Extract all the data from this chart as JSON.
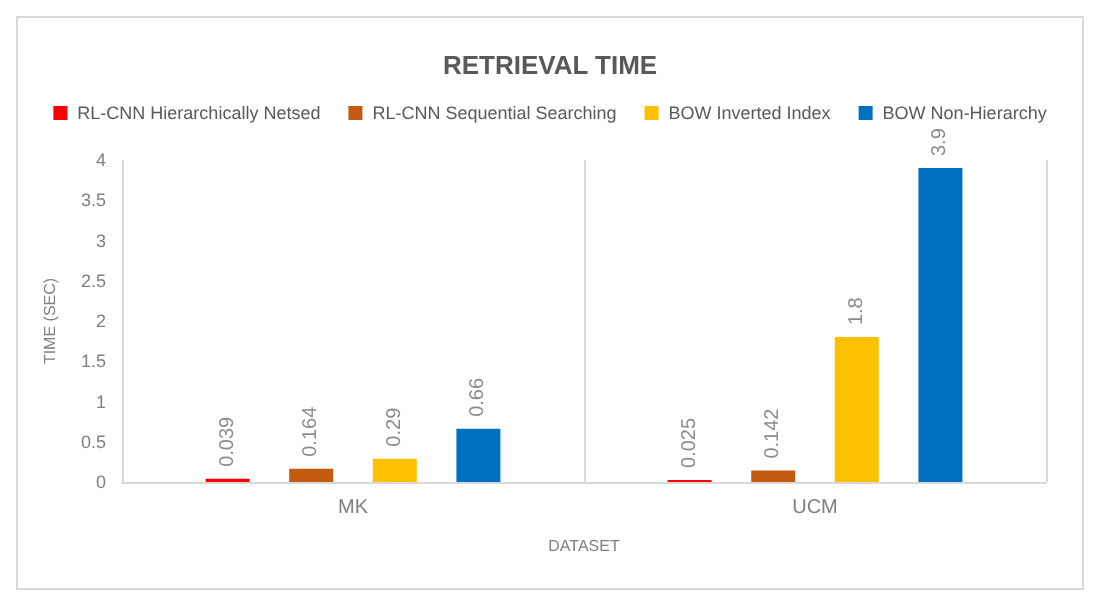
{
  "chart_data": {
    "type": "bar",
    "title": "RETRIEVAL TIME",
    "xlabel": "DATASET",
    "ylabel": "TIME (SEC)",
    "categories": [
      "MK",
      "UCM"
    ],
    "series": [
      {
        "name": "RL-CNN Hierarchically Netsed",
        "color": "#ff0000",
        "values": [
          0.039,
          0.025
        ]
      },
      {
        "name": "RL-CNN Sequential Searching",
        "color": "#c55a11",
        "values": [
          0.164,
          0.142
        ]
      },
      {
        "name": "BOW Inverted Index",
        "color": "#ffc000",
        "values": [
          0.29,
          1.8
        ]
      },
      {
        "name": "BOW Non-Hierarchy",
        "color": "#0070c0",
        "values": [
          0.66,
          3.9
        ]
      }
    ],
    "ylim": [
      0,
      4
    ],
    "yticks": [
      0,
      0.5,
      1,
      1.5,
      2,
      2.5,
      3,
      3.5,
      4
    ],
    "grid": "x",
    "legend": "top",
    "data_labels": true
  }
}
